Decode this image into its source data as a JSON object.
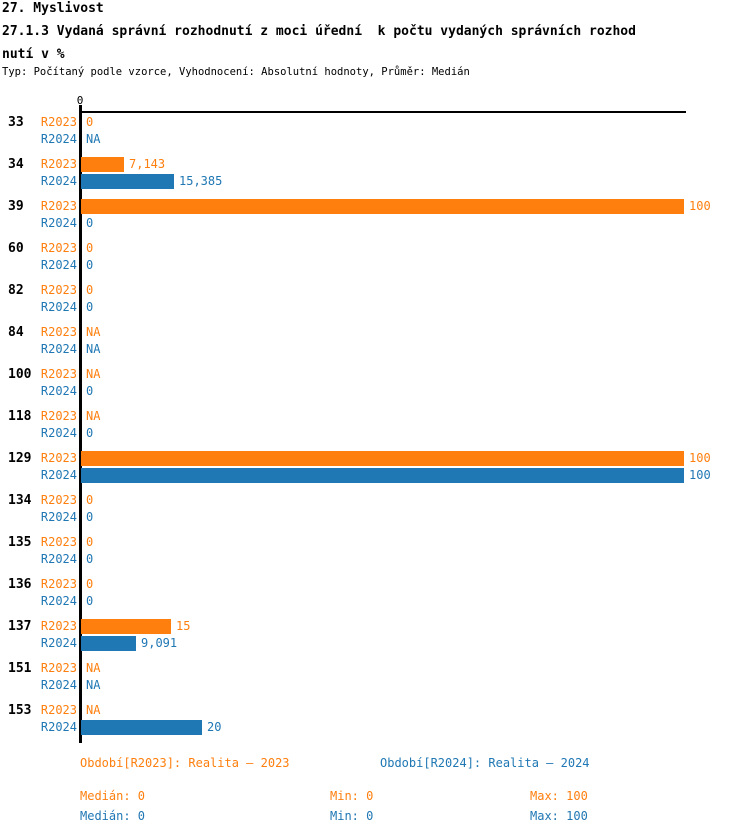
{
  "header": {
    "section": "27. Myslivost",
    "title_lines": [
      "27.1.3 Vydaná správní rozhodnutí z moci úřední  k počtu vydaných správních rozhod",
      "nutí v %"
    ],
    "meta": "Typ: Počítaný podle vzorce, Vyhodnocení: Absolutní hodnoty, Průměr: Medián"
  },
  "chart_data": {
    "type": "bar",
    "orientation": "horizontal",
    "title": "27.1.3 Vydaná správní rozhodnutí z moci úřední k počtu vydaných správních rozhodnutí v %",
    "xlim": [
      0,
      100
    ],
    "axis_tick_label": "0",
    "grid": false,
    "legend_position": "bottom",
    "categories": [
      "33",
      "34",
      "39",
      "60",
      "82",
      "84",
      "100",
      "118",
      "129",
      "134",
      "135",
      "136",
      "137",
      "151",
      "153"
    ],
    "series": [
      {
        "name": "R2023",
        "color": "#FF7F0E",
        "values": [
          0,
          7.143,
          100,
          0,
          0,
          null,
          null,
          null,
          100,
          0,
          0,
          0,
          15,
          null,
          null
        ],
        "labels": [
          "0",
          "7,143",
          "100",
          "0",
          "0",
          "NA",
          "NA",
          "NA",
          "100",
          "0",
          "0",
          "0",
          "15",
          "NA",
          "NA"
        ]
      },
      {
        "name": "R2024",
        "color": "#1F77B4",
        "values": [
          null,
          15.385,
          0,
          0,
          0,
          null,
          0,
          0,
          100,
          0,
          0,
          0,
          9.091,
          null,
          20
        ],
        "labels": [
          "NA",
          "15,385",
          "0",
          "0",
          "0",
          "NA",
          "0",
          "0",
          "100",
          "0",
          "0",
          "0",
          "9,091",
          "NA",
          "20"
        ]
      }
    ]
  },
  "footer": {
    "rows": [
      {
        "period": "Období[R2023]: Realita – 2023",
        "median": "Medián: 0",
        "min": "Min: 0",
        "max": "Max: 100"
      },
      {
        "period": "Období[R2024]: Realita – 2024",
        "median": "Medián: 0",
        "min": "Min: 0",
        "max": "Max: 100"
      }
    ]
  },
  "colors": {
    "r2023": "#FF7F0E",
    "r2024": "#1F77B4",
    "axis": "#000000"
  }
}
